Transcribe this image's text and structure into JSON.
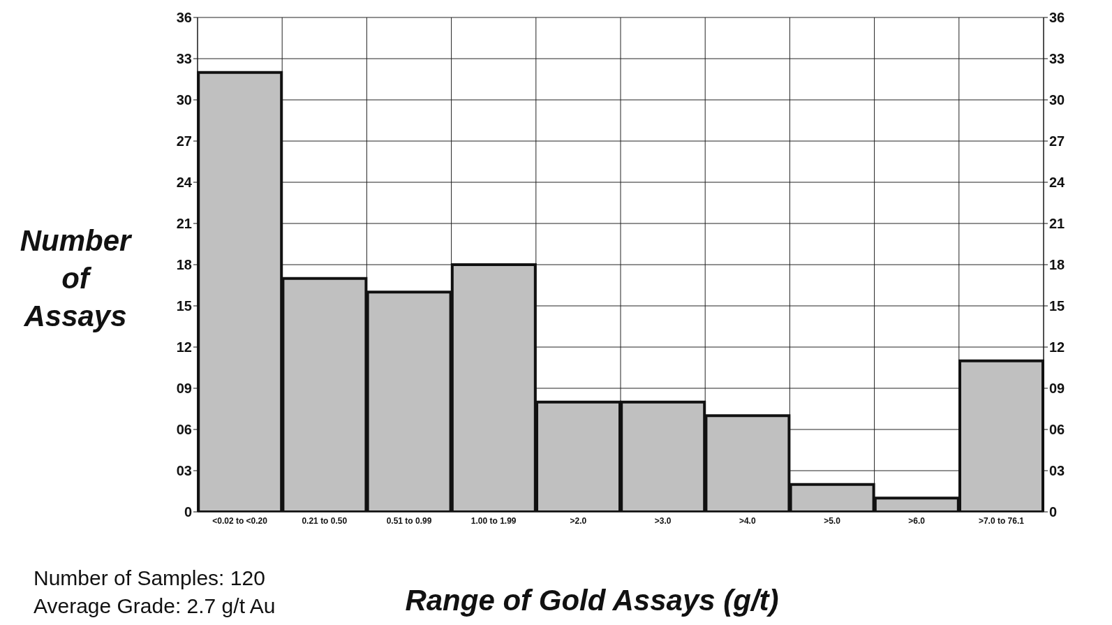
{
  "chart_data": {
    "type": "bar",
    "xlabel": "Range of Gold Assays (g/t)",
    "ylabel": "Number of Assays",
    "categories": [
      "<0.02 to <0.20",
      "0.21 to 0.50",
      "0.51 to 0.99",
      "1.00 to 1.99",
      ">2.0",
      ">3.0",
      ">4.0",
      ">5.0",
      ">6.0",
      ">7.0 to 76.1"
    ],
    "values": [
      32,
      17,
      16,
      18,
      8,
      8,
      7,
      2,
      1,
      11
    ],
    "color": "#c0c0c0",
    "ylim": [
      0,
      36
    ],
    "yticks": [
      0,
      {
        "value": 3,
        "label": "03"
      },
      {
        "value": 6,
        "label": "06"
      },
      {
        "value": 9,
        "label": "09"
      },
      12,
      15,
      18,
      21,
      24,
      27,
      30,
      33,
      36
    ],
    "y2lim": [
      0,
      36
    ],
    "y2ticks": [
      0,
      {
        "value": 3,
        "label": "03"
      },
      {
        "value": 6,
        "label": "06"
      },
      {
        "value": 9,
        "label": "09"
      },
      12,
      15,
      18,
      21,
      24,
      27,
      30,
      33,
      36
    ],
    "grid": true,
    "annotations": [
      "Number of Samples: 120",
      "Average Grade: 2.7 g/t Au"
    ]
  }
}
